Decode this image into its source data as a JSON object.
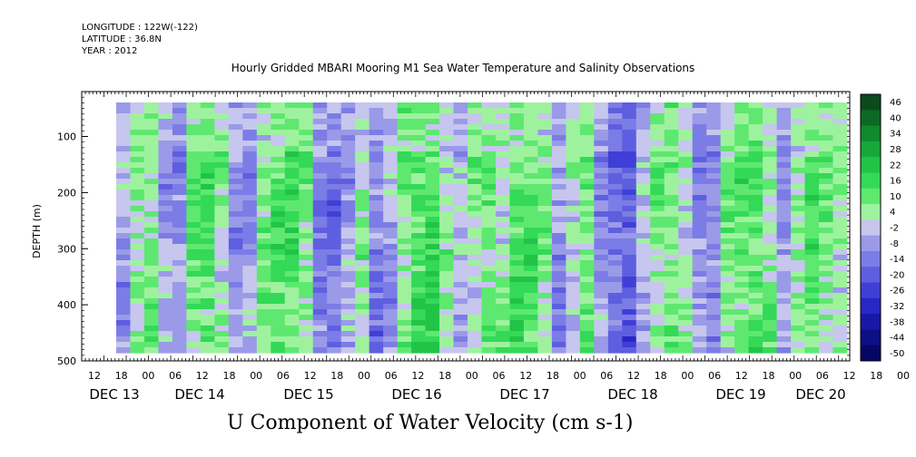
{
  "header": {
    "longitude": "LONGITUDE : 122W(-122)",
    "latitude": "LATITUDE : 36.8N",
    "year": "YEAR : 2012",
    "title": "Hourly Gridded MBARI Mooring M1 Sea Water Temperature and Salinity Observations"
  },
  "chart_data": {
    "type": "heatmap",
    "title": "Hourly Gridded MBARI Mooring M1 Sea Water Temperature and Salinity Observations",
    "xlabel": "U Component of Water Velocity (cm s-1)",
    "ylabel": "DEPTH (m)",
    "y_ticks": [
      "100",
      "200",
      "300",
      "400",
      "500"
    ],
    "y_range": [
      500,
      20
    ],
    "hour_ticks": [
      "12",
      "18",
      "00",
      "06",
      "12",
      "18",
      "00",
      "06",
      "12",
      "18",
      "00",
      "06",
      "12",
      "18",
      "00",
      "06",
      "12",
      "18",
      "00",
      "06",
      "12",
      "18",
      "00",
      "06",
      "12",
      "18",
      "00",
      "06",
      "12",
      "18",
      "00",
      "06"
    ],
    "date_ticks": [
      "DEC 13",
      "DEC 14",
      "DEC 15",
      "DEC 16",
      "DEC 17",
      "DEC 18",
      "DEC 19",
      "DEC 20"
    ],
    "colorbar": {
      "labels": [
        "46",
        "40",
        "34",
        "28",
        "22",
        "16",
        "10",
        "4",
        "-2",
        "-8",
        "-14",
        "-20",
        "-26",
        "-32",
        "-38",
        "-44",
        "-50"
      ],
      "colors": [
        "#0b4a1c",
        "#0d6a24",
        "#0f8a2c",
        "#17a83a",
        "#22c447",
        "#33d957",
        "#5ee870",
        "#9ef29e",
        "#c6c6ee",
        "#9a9ae8",
        "#7c7ce6",
        "#5e5ee0",
        "#3f3fd8",
        "#2727c4",
        "#1818a6",
        "#0e0e86",
        "#060664"
      ]
    },
    "velocity_columns": [
      -5,
      8,
      10,
      -4,
      -8,
      12,
      14,
      8,
      -6,
      -4,
      10,
      14,
      16,
      10,
      -8,
      -12,
      -4,
      6,
      -10,
      -4,
      10,
      16,
      18,
      6,
      -2,
      6,
      12,
      8,
      16,
      14,
      8,
      -8,
      4,
      12,
      -6,
      -14,
      -18,
      -2,
      10,
      12,
      6,
      -8,
      -10,
      8,
      14,
      16,
      10,
      -6,
      6,
      14,
      10,
      8
    ],
    "grid": false,
    "legend": "right"
  }
}
